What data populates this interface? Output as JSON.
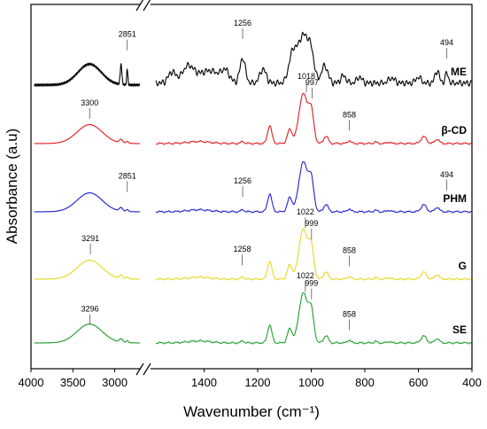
{
  "chart_data": {
    "type": "line",
    "title": "",
    "xlabel": "Wavenumber (cm⁻¹)",
    "ylabel": "Absorbance (a.u)",
    "x_axis": {
      "direction": "reversed",
      "broken": true,
      "segments": [
        {
          "range": [
            4000,
            2700
          ],
          "ticks": [
            4000,
            3500,
            3000
          ]
        },
        {
          "range": [
            1600,
            400
          ],
          "ticks": [
            1400,
            1200,
            1000,
            800,
            600,
            400
          ]
        }
      ]
    },
    "grid": false,
    "legend": "none",
    "series": [
      {
        "name": "ME",
        "color": "#000000",
        "offset": 4,
        "pattern": "me",
        "annotations": [
          {
            "label": "2851",
            "x": 2851,
            "y": 0.72
          },
          {
            "label": "1256",
            "x": 1256,
            "y": 0.95
          },
          {
            "label": "494",
            "x": 494,
            "y": 0.55
          }
        ]
      },
      {
        "name": "β-CD",
        "color": "#e31a1c",
        "offset": 3,
        "pattern": "std",
        "annotations": [
          {
            "label": "3300",
            "x": 3300,
            "y": 0.52
          },
          {
            "label": "1018",
            "x": 1018,
            "y": 1.05
          },
          {
            "label": "997",
            "x": 997,
            "y": 0.93
          },
          {
            "label": "858",
            "x": 858,
            "y": 0.28
          }
        ]
      },
      {
        "name": "PHM",
        "color": "#1f1fd1",
        "offset": 2,
        "pattern": "std",
        "annotations": [
          {
            "label": "2851",
            "x": 2851,
            "y": 0.42
          },
          {
            "label": "1256",
            "x": 1256,
            "y": 0.32
          },
          {
            "label": "494",
            "x": 494,
            "y": 0.45
          }
        ]
      },
      {
        "name": "G",
        "color": "#e5d820",
        "offset": 1,
        "pattern": "std",
        "annotations": [
          {
            "label": "3291",
            "x": 3291,
            "y": 0.52
          },
          {
            "label": "1022",
            "x": 1022,
            "y": 1.05
          },
          {
            "label": "999",
            "x": 999,
            "y": 0.82
          },
          {
            "label": "1258",
            "x": 1258,
            "y": 0.3
          },
          {
            "label": "858",
            "x": 858,
            "y": 0.28
          }
        ]
      },
      {
        "name": "SE",
        "color": "#1e9e2a",
        "offset": 0,
        "pattern": "std",
        "annotations": [
          {
            "label": "3296",
            "x": 3296,
            "y": 0.38
          },
          {
            "label": "1022",
            "x": 1022,
            "y": 1.05
          },
          {
            "label": "999",
            "x": 999,
            "y": 0.9
          },
          {
            "label": "858",
            "x": 858,
            "y": 0.28
          }
        ]
      }
    ]
  }
}
